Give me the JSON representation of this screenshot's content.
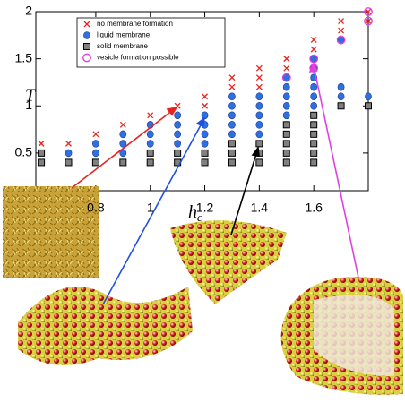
{
  "chart_data": {
    "type": "scatter",
    "y_label": "T",
    "x_label": "h",
    "x_label_subscript": "c",
    "xlim": [
      0.58,
      1.8
    ],
    "ylim": [
      0.1,
      2
    ],
    "xticks": [
      {
        "value": 0.8,
        "label": "0.8"
      },
      1,
      1.2,
      1.4,
      1.6
    ],
    "yticks": [
      0.5,
      1,
      1.5,
      2
    ],
    "legend": "upper left",
    "series": [
      {
        "name": "no membrane formation",
        "color": "#e8231f",
        "marker": "x",
        "x": [
          0.6,
          0.7,
          0.8,
          0.9,
          1.0,
          1.1,
          1.2,
          1.2,
          1.3,
          1.3,
          1.4,
          1.4,
          1.4,
          1.5,
          1.5,
          1.6,
          1.6,
          1.7,
          1.7,
          1.8,
          1.8
        ],
        "y": [
          0.6,
          0.6,
          0.7,
          0.8,
          0.9,
          1.0,
          1.0,
          1.1,
          1.2,
          1.3,
          1.2,
          1.3,
          1.4,
          1.4,
          1.5,
          1.6,
          1.7,
          1.8,
          1.9,
          1.9,
          2.0
        ]
      },
      {
        "name": "liquid membrane",
        "color": "#2f6fe0",
        "marker": "circle",
        "x": [
          0.7,
          0.8,
          0.8,
          0.9,
          0.9,
          0.9,
          1.0,
          1.0,
          1.0,
          1.1,
          1.1,
          1.1,
          1.1,
          1.2,
          1.2,
          1.2,
          1.2,
          1.3,
          1.3,
          1.3,
          1.3,
          1.3,
          1.4,
          1.4,
          1.4,
          1.4,
          1.4,
          1.5,
          1.5,
          1.5,
          1.5,
          1.5,
          1.6,
          1.6,
          1.6,
          1.6,
          1.6,
          1.6,
          1.7,
          1.7,
          1.7,
          1.8
        ],
        "y": [
          0.5,
          0.5,
          0.6,
          0.5,
          0.6,
          0.7,
          0.6,
          0.7,
          0.8,
          0.6,
          0.7,
          0.8,
          0.9,
          0.6,
          0.7,
          0.8,
          0.9,
          0.7,
          0.8,
          0.9,
          1.0,
          1.1,
          0.7,
          0.8,
          0.9,
          1.0,
          1.1,
          0.9,
          1.0,
          1.1,
          1.2,
          1.3,
          1.0,
          1.1,
          1.2,
          1.3,
          1.4,
          1.5,
          1.1,
          1.2,
          1.7,
          1.1
        ]
      },
      {
        "name": "solid membrane",
        "color": "#808080",
        "marker": "square",
        "x": [
          0.6,
          0.6,
          0.7,
          0.8,
          0.9,
          1.0,
          1.0,
          1.1,
          1.1,
          1.2,
          1.2,
          1.3,
          1.3,
          1.3,
          1.4,
          1.4,
          1.4,
          1.5,
          1.5,
          1.5,
          1.5,
          1.5,
          1.6,
          1.6,
          1.6,
          1.6,
          1.6,
          1.6,
          1.7,
          1.8
        ],
        "y": [
          0.4,
          0.5,
          0.4,
          0.4,
          0.4,
          0.4,
          0.5,
          0.4,
          0.5,
          0.4,
          0.5,
          0.4,
          0.5,
          0.6,
          0.4,
          0.5,
          0.6,
          0.4,
          0.5,
          0.6,
          0.7,
          0.8,
          0.4,
          0.5,
          0.6,
          0.7,
          0.8,
          0.9,
          1.0,
          1.0
        ]
      },
      {
        "name": "vesicle formation possible",
        "color": "#e040e0",
        "marker": "ring",
        "x": [
          1.5,
          1.6,
          1.6,
          1.7,
          1.8,
          1.8
        ],
        "y": [
          1.3,
          1.4,
          1.5,
          1.7,
          1.9,
          2.0
        ]
      }
    ]
  }
}
